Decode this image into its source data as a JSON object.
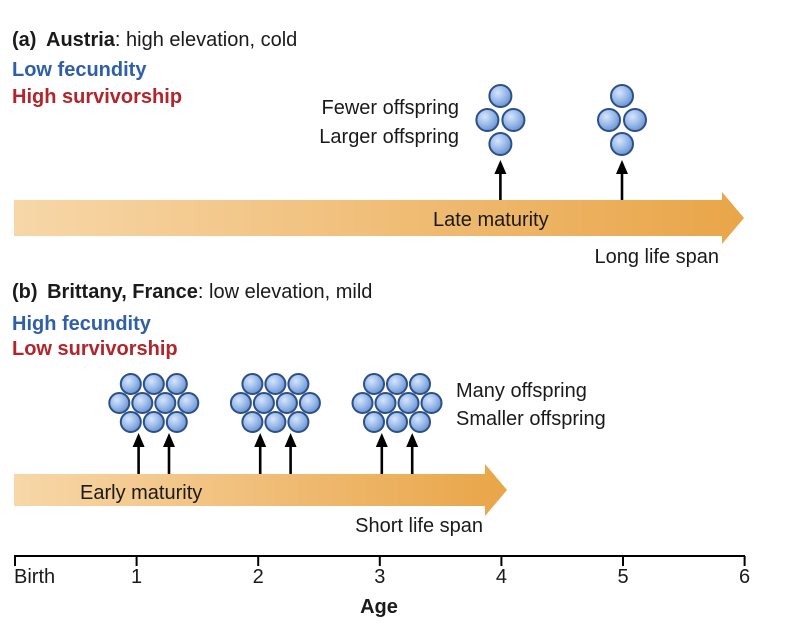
{
  "panel_a": {
    "label": "(a)",
    "location": "Austria",
    "desc": ": high elevation, cold",
    "fecundity": "Low fecundity",
    "survivorship": "High survivorship",
    "offspring_line1": "Fewer offspring",
    "offspring_line2": "Larger offspring",
    "arrow_label": "Late maturity",
    "lifespan": "Long life span",
    "reproduction_ages": [
      4,
      5
    ]
  },
  "panel_b": {
    "label": "(b)",
    "location": "Brittany, France",
    "desc": ": low elevation, mild",
    "fecundity": "High fecundity",
    "survivorship": "Low survivorship",
    "offspring_line1": "Many offspring",
    "offspring_line2": "Smaller offspring",
    "arrow_label": "Early maturity",
    "lifespan": "Short life span",
    "reproduction_ages": [
      1,
      1.25,
      2,
      2.25,
      3,
      3.25
    ]
  },
  "axis": {
    "title": "Age",
    "ticks": [
      "Birth",
      "1",
      "2",
      "3",
      "4",
      "5",
      "6"
    ]
  },
  "colors": {
    "blue_text": "#2f5fa8",
    "red_text": "#b3242b",
    "arrow_light": "#f7d7a8",
    "arrow_dark": "#e9a548",
    "egg_fill": "#8fb3e6",
    "egg_stroke": "#2d4f87"
  }
}
